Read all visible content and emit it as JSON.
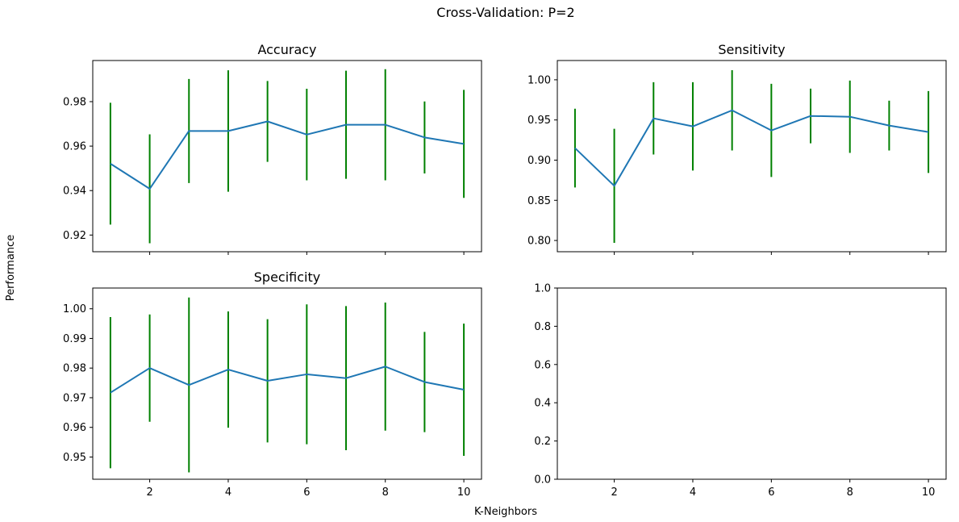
{
  "figure": {
    "suptitle": "Cross-Validation: P=2",
    "xlabel": "K-Neighbors",
    "ylabel": "Performance"
  },
  "colors": {
    "line": "#1f77b4",
    "errorbar": "#008000",
    "axes": "#000000"
  },
  "chart_data": [
    {
      "type": "line",
      "title": "Accuracy",
      "x": [
        1,
        2,
        3,
        4,
        5,
        6,
        7,
        8,
        9,
        10
      ],
      "y": [
        0.9521,
        0.9408,
        0.9668,
        0.9668,
        0.9711,
        0.9652,
        0.9696,
        0.9696,
        0.9639,
        0.961
      ],
      "yerr": [
        0.0274,
        0.0245,
        0.0234,
        0.0273,
        0.0182,
        0.0206,
        0.0243,
        0.025,
        0.0162,
        0.0243
      ],
      "xlim": [
        0.55,
        10.45
      ],
      "ylim": [
        0.9125,
        0.9985
      ],
      "yticks": [
        "0.92",
        "0.94",
        "0.96",
        "0.98"
      ],
      "xticks_labeled": false
    },
    {
      "type": "line",
      "title": "Sensitivity",
      "x": [
        1,
        2,
        3,
        4,
        5,
        6,
        7,
        8,
        9,
        10
      ],
      "y": [
        0.915,
        0.868,
        0.952,
        0.942,
        0.962,
        0.937,
        0.955,
        0.954,
        0.943,
        0.935
      ],
      "yerr": [
        0.049,
        0.071,
        0.045,
        0.055,
        0.05,
        0.058,
        0.034,
        0.045,
        0.031,
        0.051
      ],
      "xlim": [
        0.55,
        10.45
      ],
      "ylim": [
        0.786,
        1.024
      ],
      "yticks": [
        "0.80",
        "0.85",
        "0.90",
        "0.95",
        "1.00"
      ],
      "xticks_labeled": false
    },
    {
      "type": "line",
      "title": "Specificity",
      "x": [
        1,
        2,
        3,
        4,
        5,
        6,
        7,
        8,
        9,
        10
      ],
      "y": [
        0.9717,
        0.98,
        0.9743,
        0.9795,
        0.9757,
        0.9779,
        0.9766,
        0.9805,
        0.9753,
        0.9727
      ],
      "yerr": [
        0.0255,
        0.0181,
        0.0295,
        0.0196,
        0.0208,
        0.0236,
        0.0243,
        0.0216,
        0.0169,
        0.0223
      ],
      "xlim": [
        0.55,
        10.45
      ],
      "ylim": [
        0.9425,
        1.007
      ],
      "yticks": [
        "0.95",
        "0.96",
        "0.97",
        "0.98",
        "0.99",
        "1.00"
      ],
      "xticks": [
        "2",
        "4",
        "6",
        "8",
        "10"
      ],
      "xticks_labeled": true
    },
    {
      "type": "line",
      "title": "",
      "x": [],
      "y": [],
      "xlim": [
        0.55,
        10.45
      ],
      "ylim": [
        0.0,
        1.0
      ],
      "yticks": [
        "0.0",
        "0.2",
        "0.4",
        "0.6",
        "0.8",
        "1.0"
      ],
      "xticks": [
        "2",
        "4",
        "6",
        "8",
        "10"
      ],
      "xticks_labeled": true
    }
  ]
}
